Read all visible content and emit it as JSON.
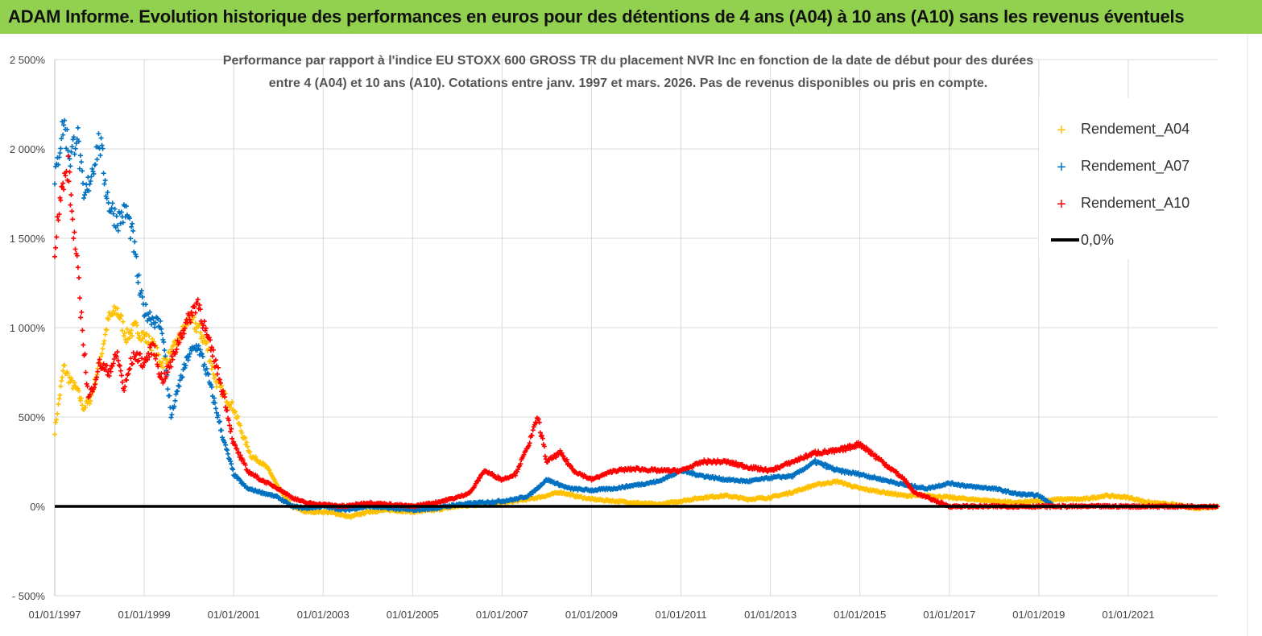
{
  "banner": {
    "title": "ADAM Informe. Evolution historique des performances en euros pour des détentions de 4 ans (A04) à 10 ans (A10) sans les revenus éventuels",
    "background": "#92d050"
  },
  "chart_data": {
    "type": "scatter",
    "title_line1": "Performance par rapport à l'indice EU STOXX 600 GROSS TR  du placement NVR Inc en fonction de la date de début pour des durées",
    "title_line2": "entre 4 (A04) et 10 ans (A10). Cotations entre janv. 1997 et mars. 2026. Pas de revenus disponibles ou pris en compte.",
    "xlabel": "",
    "ylabel": "",
    "xlim": [
      1997.0,
      2023.0
    ],
    "ylim": [
      -500,
      2500
    ],
    "y_ticks": [
      {
        "value": -500,
        "label": "- 500%"
      },
      {
        "value": 0,
        "label": "0%"
      },
      {
        "value": 500,
        "label": "500%"
      },
      {
        "value": 1000,
        "label": "1 000%"
      },
      {
        "value": 1500,
        "label": "1 500%"
      },
      {
        "value": 2000,
        "label": "2 000%"
      },
      {
        "value": 2500,
        "label": "2 500%"
      }
    ],
    "x_ticks": [
      {
        "value": 1997,
        "label": "01/01/1997"
      },
      {
        "value": 1999,
        "label": "01/01/1999"
      },
      {
        "value": 2001,
        "label": "01/01/2001"
      },
      {
        "value": 2003,
        "label": "01/01/2003"
      },
      {
        "value": 2005,
        "label": "01/01/2005"
      },
      {
        "value": 2007,
        "label": "01/01/2007"
      },
      {
        "value": 2009,
        "label": "01/01/2009"
      },
      {
        "value": 2011,
        "label": "01/01/2011"
      },
      {
        "value": 2013,
        "label": "01/01/2013"
      },
      {
        "value": 2015,
        "label": "01/01/2015"
      },
      {
        "value": 2017,
        "label": "01/01/2017"
      },
      {
        "value": 2019,
        "label": "01/01/2019"
      },
      {
        "value": 2021,
        "label": "01/01/2021"
      }
    ],
    "legend_position": "top-right",
    "series": [
      {
        "name": "Rendement_A04",
        "color": "#ffc000",
        "marker": "+",
        "x": [
          1997.0,
          1997.1,
          1997.2,
          1997.35,
          1997.5,
          1997.65,
          1997.8,
          1998.0,
          1998.2,
          1998.4,
          1998.6,
          1998.8,
          1999.0,
          1999.2,
          1999.4,
          1999.6,
          1999.8,
          2000.0,
          2000.2,
          2000.4,
          2000.6,
          2000.8,
          2001.0,
          2001.2,
          2001.4,
          2001.6,
          2001.8,
          2002.0,
          2002.3,
          2002.6,
          2003.0,
          2003.3,
          2003.6,
          2004.0,
          2004.5,
          2005.0,
          2005.5,
          2006.0,
          2006.5,
          2007.0,
          2007.3,
          2007.6,
          2008.0,
          2008.3,
          2008.6,
          2009.0,
          2009.5,
          2010.0,
          2010.5,
          2011.0,
          2011.5,
          2012.0,
          2012.5,
          2013.0,
          2013.5,
          2014.0,
          2014.5,
          2015.0,
          2015.5,
          2016.0,
          2016.5,
          2017.0,
          2017.5,
          2018.0,
          2018.5,
          2019.0,
          2019.5,
          2020.0,
          2020.5,
          2021.0,
          2021.5,
          2022.0,
          2022.5,
          2023.0
        ],
        "values": [
          420,
          600,
          780,
          700,
          650,
          550,
          600,
          800,
          1050,
          1100,
          950,
          1000,
          950,
          900,
          800,
          850,
          950,
          1050,
          1000,
          900,
          700,
          620,
          550,
          400,
          280,
          250,
          200,
          100,
          0,
          -30,
          -30,
          -40,
          -60,
          -30,
          -20,
          -30,
          -20,
          0,
          10,
          20,
          30,
          40,
          60,
          80,
          60,
          40,
          30,
          20,
          10,
          30,
          50,
          60,
          40,
          50,
          80,
          120,
          140,
          100,
          80,
          60,
          60,
          50,
          40,
          30,
          20,
          30,
          40,
          40,
          60,
          50,
          20,
          10,
          -10,
          0
        ]
      },
      {
        "name": "Rendement_A07",
        "color": "#0070c0",
        "marker": "+",
        "x": [
          1997.0,
          1997.1,
          1997.2,
          1997.35,
          1997.5,
          1997.65,
          1997.8,
          1998.0,
          1998.2,
          1998.4,
          1998.6,
          1998.75,
          1998.9,
          1999.0,
          1999.2,
          1999.4,
          1999.6,
          1999.8,
          2000.0,
          2000.2,
          2000.4,
          2000.6,
          2000.8,
          2001.0,
          2001.3,
          2001.6,
          2002.0,
          2002.3,
          2002.6,
          2003.0,
          2003.5,
          2004.0,
          2004.5,
          2005.0,
          2005.5,
          2006.0,
          2006.5,
          2007.0,
          2007.3,
          2007.6,
          2008.0,
          2008.5,
          2009.0,
          2009.5,
          2010.0,
          2010.5,
          2011.0,
          2011.5,
          2012.0,
          2012.5,
          2013.0,
          2013.5,
          2014.0,
          2014.5,
          2015.0,
          2015.5,
          2016.0,
          2016.5,
          2017.0,
          2017.5,
          2018.0,
          2018.5,
          2019.0,
          2019.3
        ],
        "values": [
          1800,
          2000,
          2150,
          1950,
          2100,
          1700,
          1850,
          2050,
          1700,
          1600,
          1650,
          1500,
          1200,
          1100,
          1050,
          1000,
          500,
          700,
          850,
          900,
          750,
          550,
          350,
          180,
          100,
          80,
          50,
          0,
          -10,
          0,
          -20,
          0,
          -10,
          -20,
          -10,
          10,
          20,
          30,
          40,
          60,
          150,
          100,
          90,
          100,
          120,
          140,
          200,
          170,
          150,
          140,
          160,
          170,
          250,
          200,
          180,
          150,
          120,
          100,
          130,
          110,
          100,
          70,
          60,
          10
        ]
      },
      {
        "name": "Rendement_A10",
        "color": "#ff0000",
        "marker": "+",
        "x": [
          1997.0,
          1997.1,
          1997.2,
          1997.3,
          1997.4,
          1997.5,
          1997.6,
          1997.75,
          1997.9,
          1998.0,
          1998.2,
          1998.4,
          1998.55,
          1998.7,
          1998.8,
          1999.0,
          1999.2,
          1999.4,
          1999.6,
          1999.8,
          2000.0,
          2000.2,
          2000.4,
          2000.6,
          2000.8,
          2001.0,
          2001.3,
          2001.6,
          2002.0,
          2002.3,
          2002.6,
          2003.0,
          2003.5,
          2004.0,
          2004.5,
          2005.0,
          2005.5,
          2006.0,
          2006.3,
          2006.6,
          2007.0,
          2007.3,
          2007.6,
          2007.8,
          2008.0,
          2008.3,
          2008.6,
          2009.0,
          2009.5,
          2010.0,
          2010.5,
          2011.0,
          2011.5,
          2012.0,
          2012.5,
          2013.0,
          2013.5,
          2014.0,
          2014.5,
          2015.0,
          2015.5,
          2016.0,
          2016.2,
          2017.0,
          2018.0,
          2019.0,
          2020.0,
          2021.0,
          2022.0,
          2023.0
        ],
        "values": [
          1450,
          1700,
          1800,
          1900,
          1600,
          1350,
          1050,
          600,
          700,
          800,
          750,
          850,
          650,
          800,
          850,
          800,
          900,
          700,
          800,
          950,
          1050,
          1150,
          950,
          800,
          600,
          350,
          200,
          150,
          100,
          50,
          20,
          10,
          0,
          20,
          10,
          0,
          20,
          50,
          80,
          200,
          150,
          180,
          350,
          500,
          250,
          300,
          200,
          150,
          200,
          210,
          200,
          200,
          250,
          250,
          220,
          200,
          250,
          300,
          310,
          350,
          250,
          150,
          80,
          0,
          0,
          0,
          0,
          0,
          0,
          0
        ]
      },
      {
        "name": "0,0%",
        "color": "#000000",
        "marker": "line",
        "x": [
          1997.0,
          2023.0
        ],
        "values": [
          0,
          0
        ]
      }
    ]
  }
}
